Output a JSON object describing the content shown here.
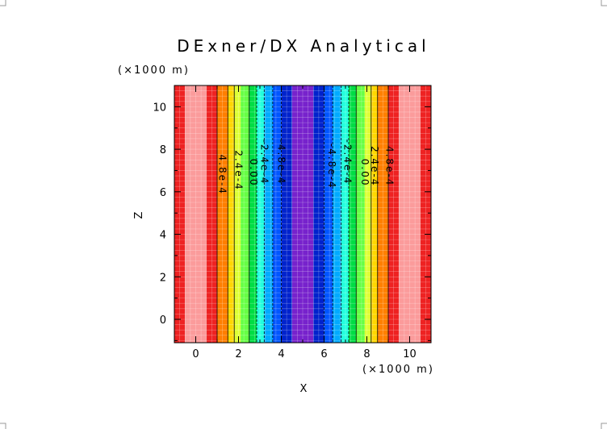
{
  "chart_data": {
    "type": "heatmap",
    "title": "DExner/DX Analytical",
    "xlabel": "X",
    "ylabel": "Z",
    "x_unit": "(×1000 m)",
    "y_unit": "(×1000 m)",
    "xlim": [
      -1,
      11
    ],
    "ylim": [
      -1.1,
      11
    ],
    "x_ticks": [
      "0",
      "2",
      "4",
      "6",
      "8",
      "10"
    ],
    "y_ticks": [
      "0",
      "2",
      "4",
      "6",
      "8",
      "10"
    ],
    "bands": [
      {
        "x0": -1.0,
        "x1": -0.5,
        "color": "#ee2222"
      },
      {
        "x0": -0.5,
        "x1": 0.5,
        "color": "#fb9b9b"
      },
      {
        "x0": 0.5,
        "x1": 1.0,
        "color": "#ee2222"
      },
      {
        "x0": 1.0,
        "x1": 1.5,
        "color": "#ff7f00"
      },
      {
        "x0": 1.5,
        "x1": 1.8,
        "color": "#ffd700"
      },
      {
        "x0": 1.8,
        "x1": 2.1,
        "color": "#ddff33"
      },
      {
        "x0": 2.1,
        "x1": 2.5,
        "color": "#66ff44"
      },
      {
        "x0": 2.5,
        "x1": 2.85,
        "color": "#00dd44"
      },
      {
        "x0": 2.85,
        "x1": 3.2,
        "color": "#22ffdd"
      },
      {
        "x0": 3.2,
        "x1": 3.6,
        "color": "#00aaff"
      },
      {
        "x0": 3.6,
        "x1": 4.0,
        "color": "#0055ff"
      },
      {
        "x0": 4.0,
        "x1": 4.5,
        "color": "#0022cc"
      },
      {
        "x0": 4.5,
        "x1": 5.5,
        "color": "#7722cc"
      },
      {
        "x0": 5.5,
        "x1": 6.0,
        "color": "#0022cc"
      },
      {
        "x0": 6.0,
        "x1": 6.4,
        "color": "#0055ff"
      },
      {
        "x0": 6.4,
        "x1": 6.8,
        "color": "#00aaff"
      },
      {
        "x0": 6.8,
        "x1": 7.15,
        "color": "#22ffdd"
      },
      {
        "x0": 7.15,
        "x1": 7.5,
        "color": "#00dd44"
      },
      {
        "x0": 7.5,
        "x1": 7.9,
        "color": "#66ff44"
      },
      {
        "x0": 7.9,
        "x1": 8.2,
        "color": "#ddff33"
      },
      {
        "x0": 8.2,
        "x1": 8.5,
        "color": "#ffd700"
      },
      {
        "x0": 8.5,
        "x1": 9.0,
        "color": "#ff7f00"
      },
      {
        "x0": 9.0,
        "x1": 9.5,
        "color": "#ee2222"
      },
      {
        "x0": 9.5,
        "x1": 10.5,
        "color": "#fb9b9b"
      },
      {
        "x0": 10.5,
        "x1": 11.0,
        "color": "#ee2222"
      }
    ],
    "contours": [
      {
        "x": 1.0,
        "dashed": false
      },
      {
        "x": 1.5,
        "dashed": false
      },
      {
        "x": 1.8,
        "dashed": false
      },
      {
        "x": 2.5,
        "dashed": false
      },
      {
        "x": 2.85,
        "dashed": true
      },
      {
        "x": 3.2,
        "dashed": true
      },
      {
        "x": 3.6,
        "dashed": true
      },
      {
        "x": 4.0,
        "dashed": true
      },
      {
        "x": 6.0,
        "dashed": true
      },
      {
        "x": 6.4,
        "dashed": true
      },
      {
        "x": 6.8,
        "dashed": true
      },
      {
        "x": 7.15,
        "dashed": true
      },
      {
        "x": 7.5,
        "dashed": false
      },
      {
        "x": 8.2,
        "dashed": false
      },
      {
        "x": 8.5,
        "dashed": false
      },
      {
        "x": 9.0,
        "dashed": false
      }
    ],
    "contour_labels": [
      {
        "text": "4.8e-4",
        "x": 1.1,
        "y": 6.8
      },
      {
        "text": "2.4e-4",
        "x": 1.85,
        "y": 7.0
      },
      {
        "text": "0.00",
        "x": 2.55,
        "y": 6.9
      },
      {
        "text": "-2.4e-4",
        "x": 3.05,
        "y": 7.4
      },
      {
        "text": "-4.8e-4",
        "x": 3.85,
        "y": 7.4
      },
      {
        "text": "-4.8e-4",
        "x": 6.2,
        "y": 7.2
      },
      {
        "text": "-2.4e-4",
        "x": 6.95,
        "y": 7.4
      },
      {
        "text": "0.00",
        "x": 7.75,
        "y": 6.9
      },
      {
        "text": "2.4e-4",
        "x": 8.2,
        "y": 7.2
      },
      {
        "text": "4.8e-4",
        "x": 8.9,
        "y": 7.2
      }
    ],
    "grid": true
  }
}
